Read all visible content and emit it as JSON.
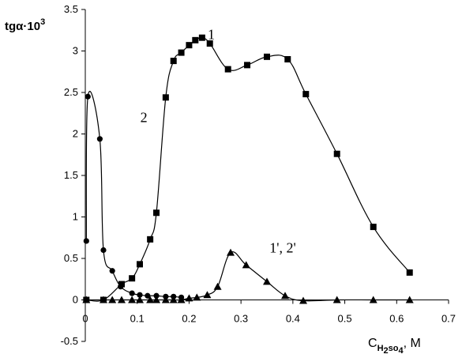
{
  "chart_data": {
    "type": "line",
    "title": "",
    "ylabel_main": "tgα",
    "ylabel_sup": "·10",
    "ylabel_exp": "3",
    "xlabel_main": "C",
    "xlabel_sub": "H",
    "xlabel_sub2": "2",
    "xlabel_mid": "so",
    "xlabel_sub3": "4",
    "xlabel_end": ", M",
    "xlim": [
      0,
      0.7
    ],
    "ylim": [
      -0.5,
      3.5
    ],
    "xticks": [
      "0",
      "0.1",
      "0.2",
      "0.3",
      "0.4",
      "0.5",
      "0.6",
      "0.7"
    ],
    "yticks": [
      "-0.5",
      "0",
      "0.5",
      "1",
      "1.5",
      "2",
      "2.5",
      "3",
      "3.5"
    ],
    "grid": false,
    "series": [
      {
        "name": "1",
        "marker": "square",
        "x": [
          0.002,
          0.035,
          0.07,
          0.09,
          0.105,
          0.125,
          0.137,
          0.155,
          0.17,
          0.185,
          0.2,
          0.212,
          0.225,
          0.24,
          0.275,
          0.312,
          0.35,
          0.39,
          0.425,
          0.485,
          0.555,
          0.625
        ],
        "y": [
          0.0,
          0.0,
          0.19,
          0.26,
          0.43,
          0.73,
          1.05,
          2.44,
          2.88,
          2.98,
          3.07,
          3.13,
          3.16,
          3.09,
          2.78,
          2.83,
          2.93,
          2.9,
          2.48,
          1.76,
          0.88,
          0.33
        ]
      },
      {
        "name": "2",
        "marker": "circle",
        "x": [
          0.002,
          0.005,
          0.028,
          0.035,
          0.052,
          0.068,
          0.09,
          0.105,
          0.12,
          0.137,
          0.155,
          0.17,
          0.185
        ],
        "y": [
          0.71,
          2.45,
          1.94,
          0.6,
          0.35,
          0.16,
          0.08,
          0.06,
          0.05,
          0.05,
          0.04,
          0.04,
          0.03
        ]
      },
      {
        "name": "1', 2'",
        "marker": "triangle",
        "x": [
          0.002,
          0.035,
          0.052,
          0.07,
          0.09,
          0.105,
          0.125,
          0.137,
          0.155,
          0.17,
          0.185,
          0.2,
          0.215,
          0.235,
          0.255,
          0.28,
          0.31,
          0.35,
          0.385,
          0.42,
          0.485,
          0.555,
          0.625
        ],
        "y": [
          0.0,
          0.0,
          0.0,
          0.0,
          0.0,
          0.0,
          0.0,
          0.0,
          0.0,
          0.0,
          0.0,
          0.02,
          0.03,
          0.06,
          0.16,
          0.57,
          0.42,
          0.22,
          0.05,
          -0.01,
          0.0,
          0.0,
          0.0
        ]
      }
    ],
    "annotations": [
      {
        "text": "1",
        "x": 0.175,
        "y": 3.2
      },
      {
        "text": "2",
        "x": 0.045,
        "y": 2.2
      },
      {
        "text": "1', 2'",
        "x": 0.355,
        "y": 0.63
      }
    ]
  }
}
